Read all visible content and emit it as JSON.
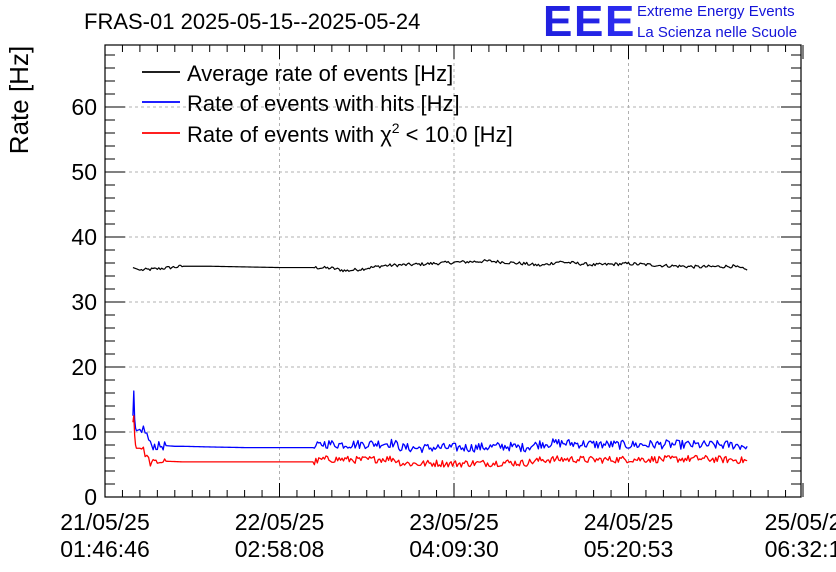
{
  "header": {
    "title": "FRAS-01 2025-05-15--2025-05-24",
    "logo_mark": "EEE",
    "logo_line1": "Extreme Energy Events",
    "logo_line2": "La Scienza nelle Scuole"
  },
  "colors": {
    "black": "#000000",
    "blue": "#0000ff",
    "red": "#ff0000",
    "grid": "#b0b0b0",
    "logo": "#1414d9"
  },
  "chart_data": {
    "type": "line",
    "title": "FRAS-01 2025-05-15--2025-05-24",
    "ylabel": "Rate [Hz]",
    "xlabel": "",
    "ylim": [
      0,
      69
    ],
    "xlim": [
      0,
      4
    ],
    "grid": true,
    "legend_position": "top-left",
    "yticks": [
      0,
      10,
      20,
      30,
      40,
      50,
      60
    ],
    "ytick_labels": [
      "0",
      "10",
      "20",
      "30",
      "40",
      "50",
      "60"
    ],
    "xticks": [
      0,
      1,
      2,
      3,
      4
    ],
    "xtick_labels": [
      {
        "date": "21/05/25",
        "time": "01:46:46"
      },
      {
        "date": "22/05/25",
        "time": "02:58:08"
      },
      {
        "date": "23/05/25",
        "time": "04:09:30"
      },
      {
        "date": "24/05/25",
        "time": "05:20:53"
      },
      {
        "date": "25/05/2",
        "time": "06:32:1"
      }
    ],
    "series": [
      {
        "name": "Average rate of events [Hz]",
        "legend_main": "Average rate of events [Hz]",
        "color": "#000000",
        "x": [
          0.16,
          0.2,
          0.3,
          0.45,
          0.6,
          0.8,
          1.0,
          1.2,
          1.3,
          1.38,
          1.45,
          1.6,
          1.8,
          2.0,
          2.2,
          2.4,
          2.5,
          2.6,
          2.8,
          3.0,
          3.2,
          3.4,
          3.6,
          3.68
        ],
        "y": [
          35.3,
          34.9,
          35.1,
          35.5,
          35.5,
          35.4,
          35.3,
          35.3,
          35.2,
          34.8,
          35.0,
          35.6,
          35.8,
          36.1,
          36.3,
          35.9,
          35.6,
          36.2,
          35.7,
          35.9,
          35.6,
          35.4,
          35.5,
          34.9
        ]
      },
      {
        "name": "Rate of events with hits [Hz]",
        "legend_main": "Rate of events with hits [Hz]",
        "color": "#0000ff",
        "x": [
          0.16,
          0.165,
          0.17,
          0.175,
          0.18,
          0.2,
          0.22,
          0.24,
          0.26,
          0.3,
          0.35,
          0.4,
          0.45,
          0.6,
          0.8,
          1.0,
          1.2,
          1.25,
          1.35,
          1.45,
          1.55,
          1.65,
          1.7,
          1.8,
          1.9,
          2.0,
          2.1,
          2.2,
          2.3,
          2.4,
          2.5,
          2.6,
          2.7,
          2.8,
          3.0,
          3.2,
          3.4,
          3.6,
          3.68
        ],
        "y": [
          12.5,
          16.3,
          12.0,
          10.6,
          10.2,
          10.4,
          10.5,
          9.6,
          8.0,
          7.8,
          7.9,
          7.8,
          7.8,
          7.7,
          7.6,
          7.6,
          7.6,
          8.2,
          8.1,
          8.1,
          8.2,
          8.3,
          7.6,
          7.5,
          7.6,
          7.6,
          7.6,
          7.7,
          7.8,
          7.6,
          8.2,
          8.3,
          8.2,
          8.1,
          8.0,
          8.1,
          8.0,
          8.0,
          7.8
        ]
      },
      {
        "name": "Rate of events with χ² < 10.0 [Hz]",
        "legend_main": "Rate of events with χ",
        "legend_sup": "2",
        "legend_rest": " < 10.0 [Hz]",
        "color": "#ff0000",
        "x": [
          0.16,
          0.165,
          0.17,
          0.175,
          0.18,
          0.2,
          0.22,
          0.24,
          0.26,
          0.3,
          0.35,
          0.45,
          0.6,
          0.8,
          1.0,
          1.2,
          1.25,
          1.35,
          1.45,
          1.55,
          1.65,
          1.7,
          1.8,
          1.9,
          2.0,
          2.1,
          2.2,
          2.3,
          2.4,
          2.5,
          2.6,
          2.7,
          2.8,
          3.0,
          3.2,
          3.4,
          3.6,
          3.68
        ],
        "y": [
          11.5,
          12.5,
          9.5,
          8.0,
          7.5,
          7.5,
          7.2,
          6.2,
          5.2,
          5.4,
          5.5,
          5.4,
          5.4,
          5.4,
          5.4,
          5.4,
          5.8,
          5.8,
          5.7,
          5.8,
          5.9,
          5.2,
          5.1,
          5.2,
          5.1,
          5.2,
          5.2,
          5.3,
          5.2,
          5.7,
          5.8,
          5.8,
          5.7,
          5.8,
          5.8,
          5.9,
          5.7,
          5.6
        ]
      }
    ]
  }
}
